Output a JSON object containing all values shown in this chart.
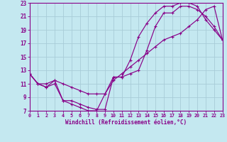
{
  "xlabel": "Windchill (Refroidissement éolien,°C)",
  "xlim": [
    0,
    23
  ],
  "ylim": [
    7,
    23
  ],
  "xticks": [
    0,
    1,
    2,
    3,
    4,
    5,
    6,
    7,
    8,
    9,
    10,
    11,
    12,
    13,
    14,
    15,
    16,
    17,
    18,
    19,
    20,
    21,
    22,
    23
  ],
  "yticks": [
    7,
    9,
    11,
    13,
    15,
    17,
    19,
    21,
    23
  ],
  "background_color": "#c4e8f0",
  "grid_color": "#a8ccd8",
  "line_color": "#880088",
  "curve1_x": [
    0,
    1,
    2,
    3,
    4,
    5,
    6,
    7,
    8,
    9,
    10,
    11,
    12,
    13,
    14,
    15,
    16,
    17,
    18,
    19,
    20,
    21,
    22,
    23
  ],
  "curve1_y": [
    12.5,
    11,
    10.5,
    11.5,
    8.5,
    8.0,
    7.5,
    7.0,
    7.0,
    9.5,
    12.0,
    12.0,
    12.5,
    13.0,
    16.0,
    19.5,
    21.5,
    21.5,
    22.5,
    22.5,
    22.0,
    21.0,
    19.5,
    17.5
  ],
  "curve2_x": [
    0,
    1,
    2,
    3,
    4,
    5,
    6,
    7,
    8,
    9,
    10,
    11,
    12,
    13,
    14,
    15,
    16,
    17,
    18,
    19,
    20,
    21,
    22,
    23
  ],
  "curve2_y": [
    12.5,
    11,
    10.5,
    11.0,
    8.5,
    8.5,
    8.0,
    7.5,
    7.2,
    7.2,
    12.0,
    12.0,
    14.5,
    18.0,
    20.0,
    21.5,
    22.5,
    22.5,
    23.0,
    23.0,
    22.5,
    20.5,
    19.0,
    17.5
  ],
  "curve3_x": [
    0,
    1,
    2,
    3,
    4,
    5,
    6,
    7,
    8,
    9,
    10,
    11,
    12,
    13,
    14,
    15,
    16,
    17,
    18,
    19,
    20,
    21,
    22,
    23
  ],
  "curve3_y": [
    12.5,
    11.0,
    11.0,
    11.5,
    11.0,
    10.5,
    10.0,
    9.5,
    9.5,
    9.5,
    11.5,
    12.5,
    13.5,
    14.5,
    15.5,
    16.5,
    17.5,
    18.0,
    18.5,
    19.5,
    20.5,
    22.0,
    22.5,
    17.5
  ]
}
